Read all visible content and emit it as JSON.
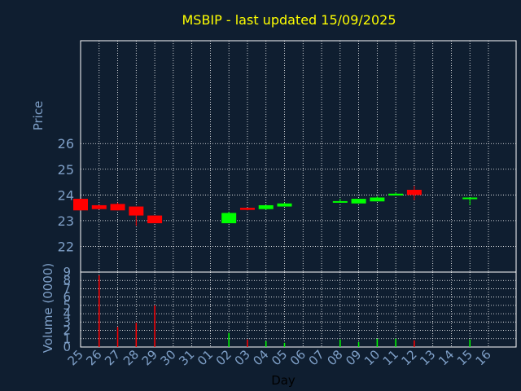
{
  "chart_data": [
    {
      "type": "candlestick",
      "title": "MSBIP - last updated 15/09/2025",
      "ylabel": "Price",
      "ylim": [
        21,
        30
      ],
      "yticks": [
        22,
        23,
        24,
        25,
        26
      ],
      "grid": true,
      "categories": [
        "25",
        "26",
        "27",
        "28",
        "29",
        "30",
        "31",
        "01",
        "02",
        "03",
        "04",
        "05",
        "06",
        "07",
        "08",
        "09",
        "10",
        "11",
        "12",
        "13",
        "14",
        "15",
        "16"
      ],
      "candles": [
        {
          "day": "25",
          "open": 23.85,
          "high": 23.85,
          "low": 23.4,
          "close": 23.4
        },
        {
          "day": "26",
          "open": 23.6,
          "high": 23.6,
          "low": 23.45,
          "close": 23.45
        },
        {
          "day": "27",
          "open": 23.65,
          "high": 23.7,
          "low": 23.4,
          "close": 23.4
        },
        {
          "day": "28",
          "open": 23.55,
          "high": 23.55,
          "low": 22.8,
          "close": 23.2
        },
        {
          "day": "29",
          "open": 23.2,
          "high": 23.2,
          "low": 22.9,
          "close": 22.9
        },
        {
          "day": "02",
          "open": 22.9,
          "high": 23.35,
          "low": 22.9,
          "close": 23.3
        },
        {
          "day": "03",
          "open": 23.5,
          "high": 23.5,
          "low": 23.4,
          "close": 23.42
        },
        {
          "day": "04",
          "open": 23.45,
          "high": 23.6,
          "low": 23.42,
          "close": 23.6
        },
        {
          "day": "05",
          "open": 23.55,
          "high": 23.7,
          "low": 23.55,
          "close": 23.67
        },
        {
          "day": "08",
          "open": 23.73,
          "high": 23.85,
          "low": 23.7,
          "close": 23.76
        },
        {
          "day": "09",
          "open": 23.67,
          "high": 23.85,
          "low": 23.67,
          "close": 23.85
        },
        {
          "day": "10",
          "open": 23.75,
          "high": 23.95,
          "low": 23.75,
          "close": 23.9
        },
        {
          "day": "11",
          "open": 23.98,
          "high": 24.1,
          "low": 23.98,
          "close": 24.05
        },
        {
          "day": "12",
          "open": 24.2,
          "high": 24.35,
          "low": 23.8,
          "close": 24.0
        },
        {
          "day": "15",
          "open": 23.86,
          "high": 23.9,
          "low": 23.6,
          "close": 23.9
        }
      ]
    },
    {
      "type": "bar",
      "ylabel": "Volume (0000)",
      "xlabel": "Day",
      "ylim": [
        0,
        9
      ],
      "yticks": [
        0,
        1,
        2,
        3,
        4,
        5,
        6,
        7,
        8,
        9
      ],
      "grid": true,
      "bars": [
        {
          "day": "26",
          "value": 8.6,
          "direction": "down"
        },
        {
          "day": "27",
          "value": 2.4,
          "direction": "down"
        },
        {
          "day": "28",
          "value": 2.9,
          "direction": "down"
        },
        {
          "day": "29",
          "value": 5.0,
          "direction": "down"
        },
        {
          "day": "02",
          "value": 1.7,
          "direction": "up"
        },
        {
          "day": "03",
          "value": 0.9,
          "direction": "down"
        },
        {
          "day": "04",
          "value": 0.7,
          "direction": "up"
        },
        {
          "day": "05",
          "value": 0.5,
          "direction": "up"
        },
        {
          "day": "08",
          "value": 0.9,
          "direction": "up"
        },
        {
          "day": "09",
          "value": 0.6,
          "direction": "up"
        },
        {
          "day": "10",
          "value": 1.0,
          "direction": "up"
        },
        {
          "day": "11",
          "value": 1.0,
          "direction": "up"
        },
        {
          "day": "12",
          "value": 0.8,
          "direction": "down"
        },
        {
          "day": "15",
          "value": 0.9,
          "direction": "up"
        }
      ]
    }
  ],
  "colors": {
    "background": "#0f1e30",
    "title": "#ffff00",
    "axis_text": "#7fa0c8",
    "grid": "#ffffff",
    "frame": "#ffffff",
    "up": "#00ff00",
    "down": "#ff0000",
    "xlabel": "#000000"
  }
}
